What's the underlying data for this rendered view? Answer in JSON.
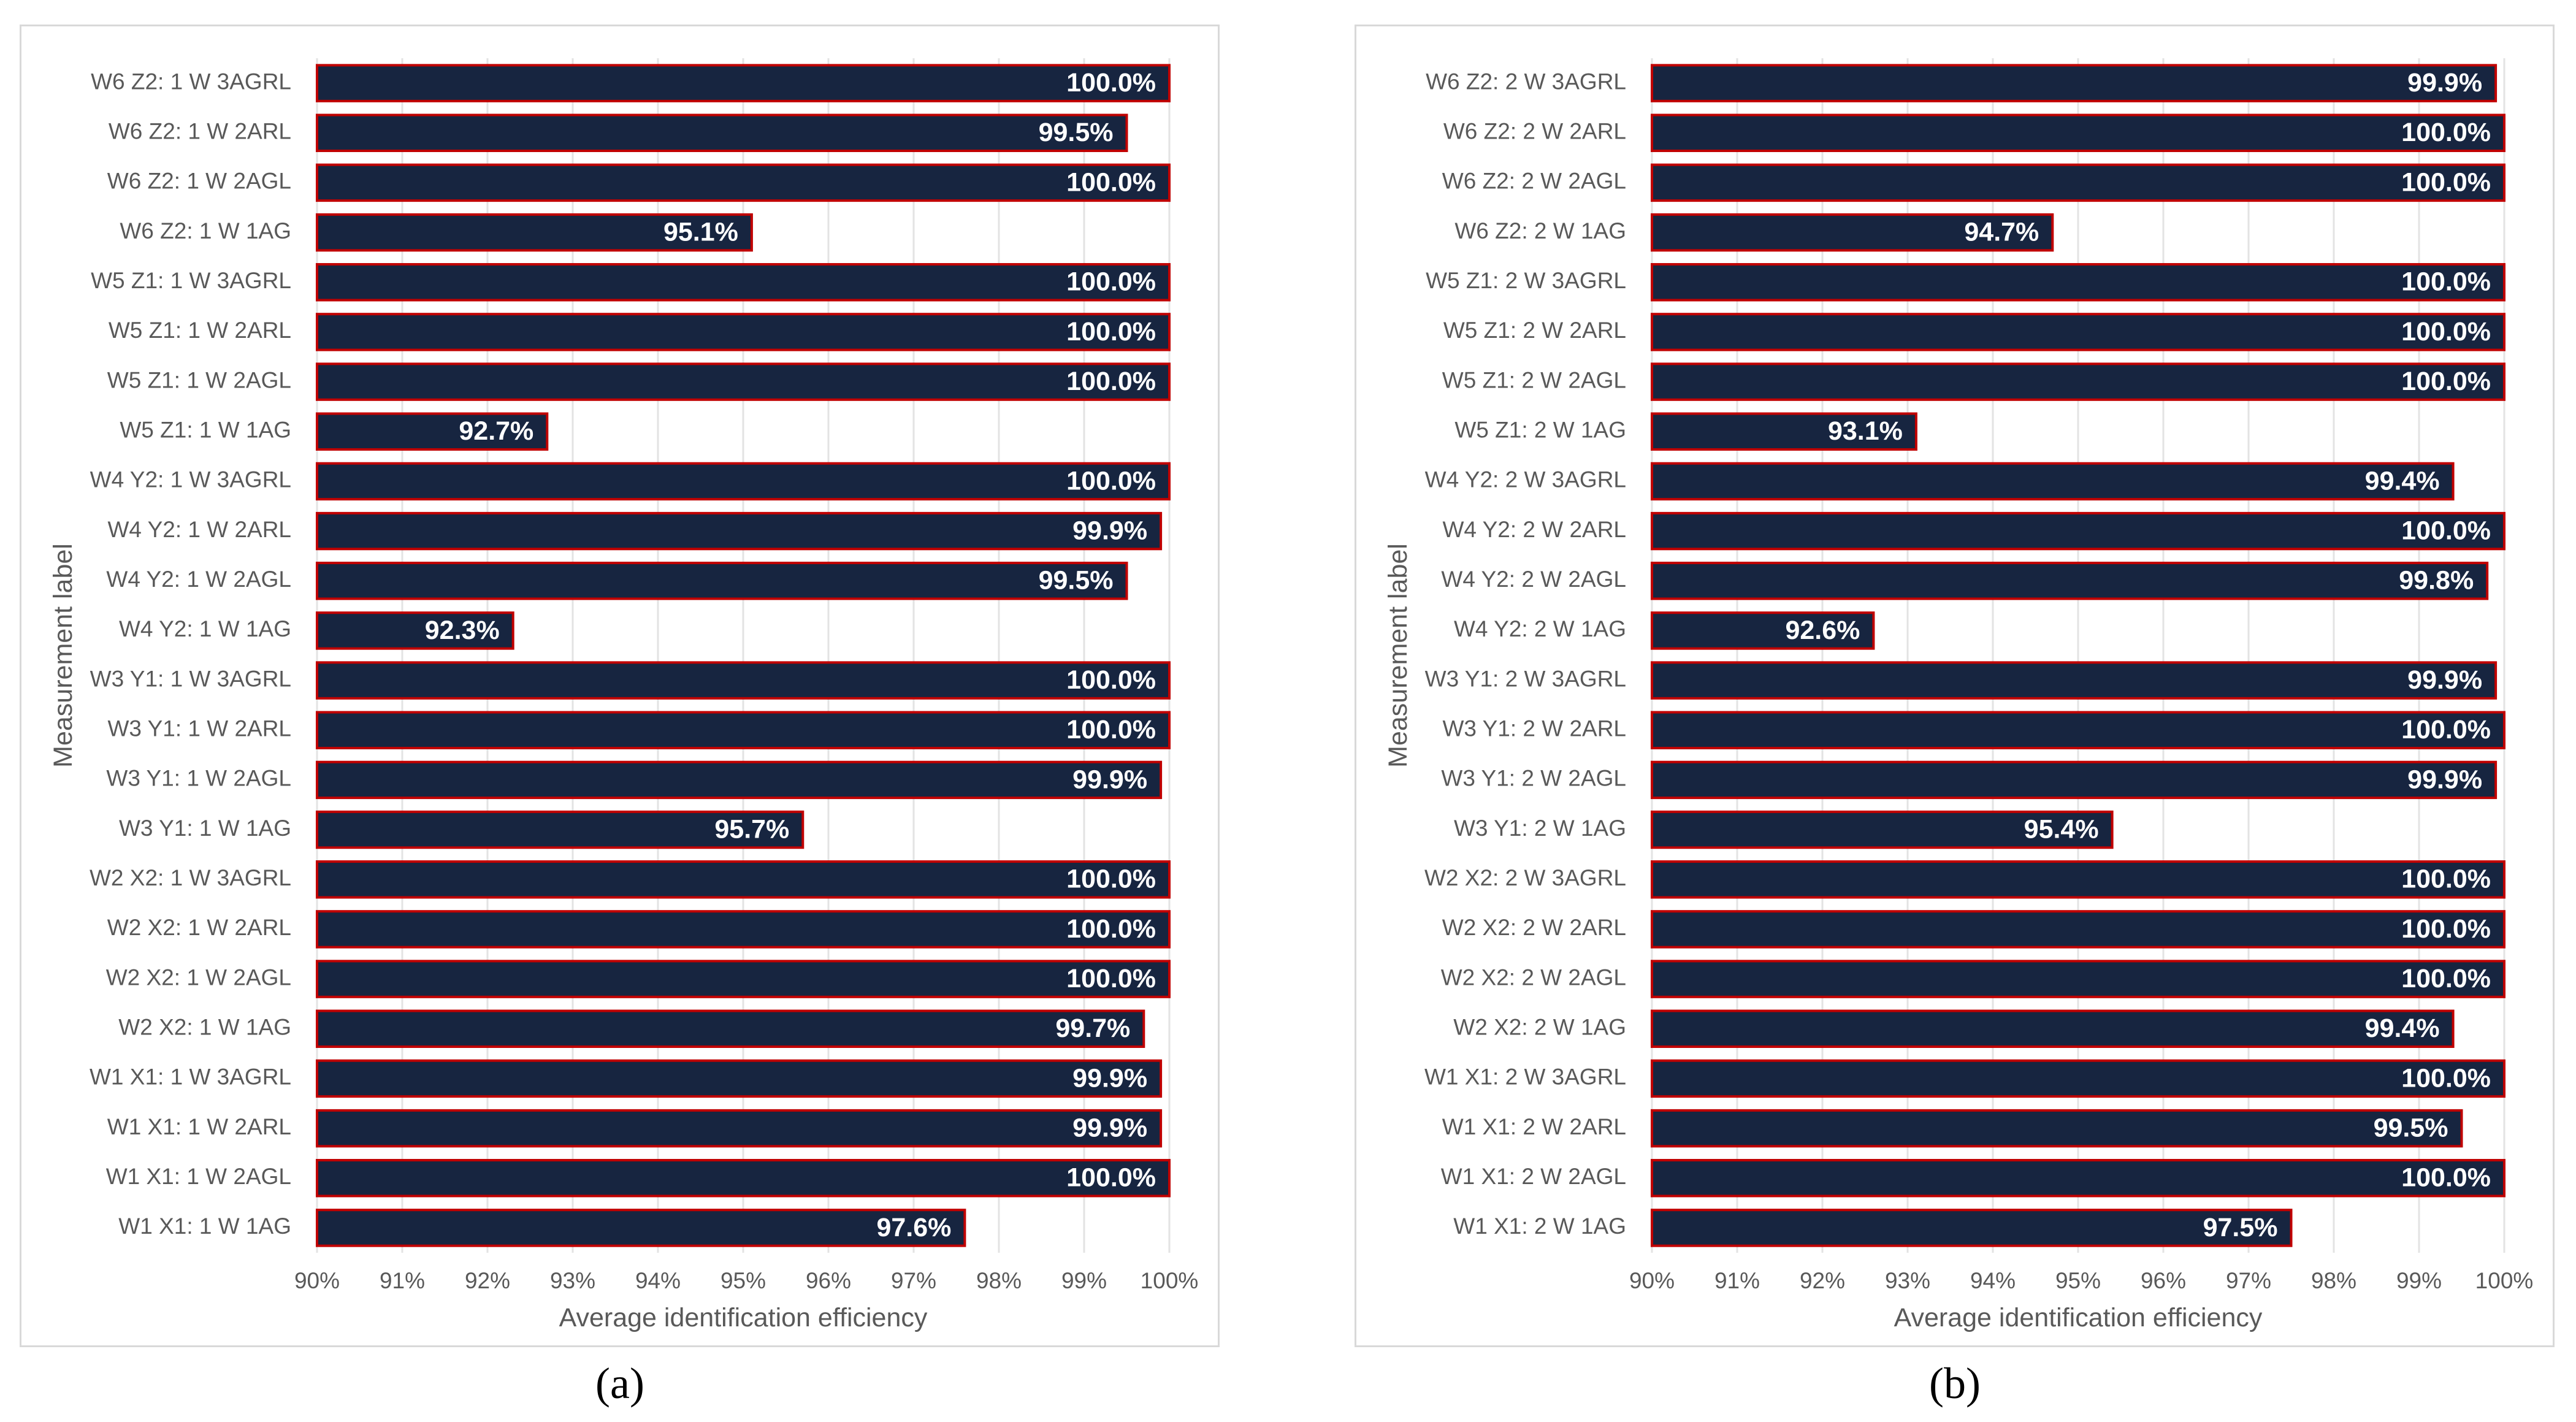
{
  "colors": {
    "bar_fill": "#172540",
    "bar_outline": "#c00000",
    "gridline": "#e3e3e3",
    "text": "#595959"
  },
  "chart_data": [
    {
      "type": "bar",
      "orientation": "horizontal",
      "panel_caption": "(a)",
      "xlabel": "Average identification efficiency",
      "ylabel": "Measurement label",
      "xlim": [
        90,
        100
      ],
      "ticks": [
        "90%",
        "91%",
        "92%",
        "93%",
        "94%",
        "95%",
        "96%",
        "97%",
        "98%",
        "99%",
        "100%"
      ],
      "grid": true,
      "categories": [
        "W6 Z2: 1 W 3AGRL",
        "W6 Z2: 1 W 2ARL",
        "W6 Z2: 1 W 2AGL",
        "W6 Z2: 1 W 1AG",
        "W5 Z1: 1 W 3AGRL",
        "W5 Z1: 1 W 2ARL",
        "W5 Z1: 1 W 2AGL",
        "W5 Z1: 1 W 1AG",
        "W4 Y2: 1 W 3AGRL",
        "W4 Y2: 1 W 2ARL",
        "W4 Y2: 1 W 2AGL",
        "W4 Y2: 1 W 1AG",
        "W3 Y1: 1 W 3AGRL",
        "W3 Y1: 1 W 2ARL",
        "W3 Y1: 1 W 2AGL",
        "W3 Y1: 1 W 1AG",
        "W2 X2: 1 W 3AGRL",
        "W2 X2: 1 W 2ARL",
        "W2 X2: 1 W 2AGL",
        "W2 X2: 1 W 1AG",
        "W1 X1: 1 W 3AGRL",
        "W1 X1: 1 W 2ARL",
        "W1 X1: 1 W 2AGL",
        "W1 X1: 1 W 1AG"
      ],
      "values": [
        100.0,
        99.5,
        100.0,
        95.1,
        100.0,
        100.0,
        100.0,
        92.7,
        100.0,
        99.9,
        99.5,
        92.3,
        100.0,
        100.0,
        99.9,
        95.7,
        100.0,
        100.0,
        100.0,
        99.7,
        99.9,
        99.9,
        100.0,
        97.6
      ],
      "labels": [
        "100.0%",
        "99.5%",
        "100.0%",
        "95.1%",
        "100.0%",
        "100.0%",
        "100.0%",
        "92.7%",
        "100.0%",
        "99.9%",
        "99.5%",
        "92.3%",
        "100.0%",
        "100.0%",
        "99.9%",
        "95.7%",
        "100.0%",
        "100.0%",
        "100.0%",
        "99.7%",
        "99.9%",
        "99.9%",
        "100.0%",
        "97.6%"
      ]
    },
    {
      "type": "bar",
      "orientation": "horizontal",
      "panel_caption": "(b)",
      "xlabel": "Average identification efficiency",
      "ylabel": "Measurement label",
      "xlim": [
        90,
        100
      ],
      "ticks": [
        "90%",
        "91%",
        "92%",
        "93%",
        "94%",
        "95%",
        "96%",
        "97%",
        "98%",
        "99%",
        "100%"
      ],
      "grid": true,
      "categories": [
        "W6 Z2: 2 W 3AGRL",
        "W6 Z2: 2 W 2ARL",
        "W6 Z2: 2 W 2AGL",
        "W6 Z2: 2 W 1AG",
        "W5 Z1: 2 W 3AGRL",
        "W5 Z1: 2 W 2ARL",
        "W5 Z1: 2 W 2AGL",
        "W5 Z1: 2 W 1AG",
        "W4 Y2: 2 W 3AGRL",
        "W4 Y2: 2 W 2ARL",
        "W4 Y2: 2 W 2AGL",
        "W4 Y2: 2 W 1AG",
        "W3 Y1: 2 W 3AGRL",
        "W3 Y1: 2 W 2ARL",
        "W3 Y1: 2 W 2AGL",
        "W3 Y1: 2 W 1AG",
        "W2 X2: 2 W 3AGRL",
        "W2 X2: 2 W 2ARL",
        "W2 X2: 2 W 2AGL",
        "W2 X2: 2 W 1AG",
        "W1 X1: 2 W 3AGRL",
        "W1 X1: 2 W 2ARL",
        "W1 X1: 2 W 2AGL",
        "W1 X1: 2 W 1AG"
      ],
      "values": [
        99.9,
        100.0,
        100.0,
        94.7,
        100.0,
        100.0,
        100.0,
        93.1,
        99.4,
        100.0,
        99.8,
        92.6,
        99.9,
        100.0,
        99.9,
        95.4,
        100.0,
        100.0,
        100.0,
        99.4,
        100.0,
        99.5,
        100.0,
        97.5
      ],
      "labels": [
        "99.9%",
        "100.0%",
        "100.0%",
        "94.7%",
        "100.0%",
        "100.0%",
        "100.0%",
        "93.1%",
        "99.4%",
        "100.0%",
        "99.8%",
        "92.6%",
        "99.9%",
        "100.0%",
        "99.9%",
        "95.4%",
        "100.0%",
        "100.0%",
        "100.0%",
        "99.4%",
        "100.0%",
        "99.5%",
        "100.0%",
        "97.5%"
      ]
    }
  ]
}
